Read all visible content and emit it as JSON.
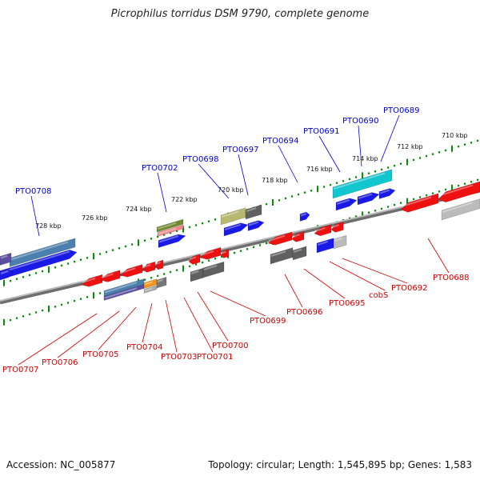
{
  "title": "Picrophilus torridus DSM 9790, complete genome",
  "footer": {
    "accession": "Accession: NC_005877",
    "summary": "Topology: circular; Length: 1,545,895 bp; Genes: 1,583"
  },
  "colors": {
    "top_label": "#0000cc",
    "bottom_label": "#cc0000",
    "ruler_dot": "#118811",
    "backbone": "#8a8a8a"
  },
  "ruler_labels": [
    "710 kbp",
    "712 kbp",
    "714 kbp",
    "716 kbp",
    "718 kbp",
    "720 kbp",
    "722 kbp",
    "724 kbp",
    "726 kbp",
    "728 kbp"
  ],
  "top_genes": [
    "PTO0689",
    "PTO0690",
    "PTO0691",
    "PTO0694",
    "PTO0697",
    "PTO0698",
    "PTO0702",
    "PTO0708"
  ],
  "bottom_genes": [
    "PTO0688",
    "PTO0692",
    "cobS",
    "PTO0695",
    "PTO0696",
    "PTO0699",
    "PTO0700",
    "PTO0701",
    "PTO0703",
    "PTO0704",
    "PTO0705",
    "PTO0706",
    "PTO0707"
  ]
}
